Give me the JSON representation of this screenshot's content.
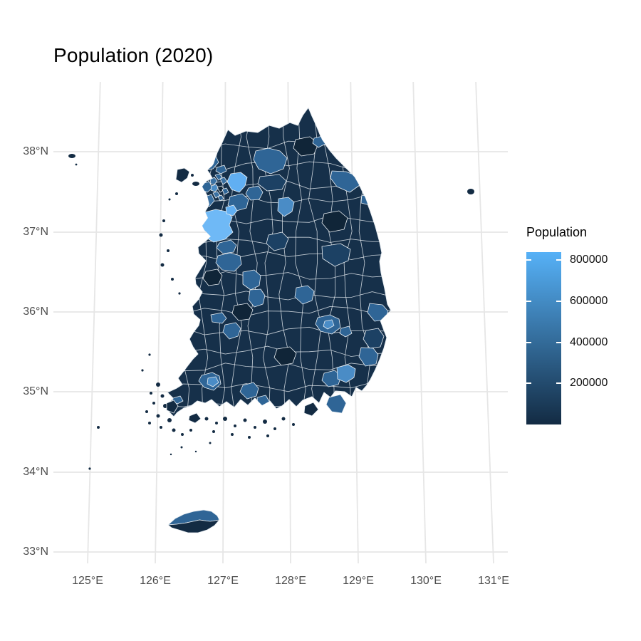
{
  "title": "Population (2020)",
  "legend": {
    "title": "Population",
    "ticks": [
      "800000",
      "600000",
      "400000",
      "200000"
    ]
  },
  "axes": {
    "x_ticks": [
      "125°E",
      "126°E",
      "127°E",
      "128°E",
      "129°E",
      "130°E",
      "131°E"
    ],
    "y_ticks": [
      "38°N",
      "37°N",
      "36°N",
      "35°N",
      "34°N",
      "33°N"
    ]
  },
  "palette": {
    "lo": "#132B43",
    "hi": "#56B1F7",
    "base": "#16304A",
    "dark": "#132B43",
    "dark2": "#102538",
    "dark3": "#1C4164",
    "med": "#2F6596",
    "med2": "#3A71A3",
    "medlight": "#4A8CC6",
    "light": "#61AFF2",
    "lightest": "#6FB9F6",
    "border": "#EBF0F4",
    "grid": "#E6E6E6",
    "axis_text": "#4D4D4D",
    "title_text": "#000000",
    "background": "#FFFFFF"
  },
  "chart_data": {
    "type": "choropleth_map",
    "title": "Population (2020)",
    "subject": "South Korea, municipal-level districts shaded by population",
    "graticule": {
      "lon_ticks_deg_E": [
        125,
        126,
        127,
        128,
        129,
        130,
        131
      ],
      "lat_ticks_deg_N": [
        33,
        34,
        35,
        36,
        37,
        38
      ],
      "grid": "on, light gray, slightly slanted meridians (projected CRS)"
    },
    "color_scale": {
      "type": "continuous_gradient",
      "legend_title": "Population",
      "low_color": "#132B43",
      "high_color": "#56B1F7",
      "legend_ticks": [
        200000,
        400000,
        600000,
        800000
      ],
      "approx_domain": [
        0,
        840000
      ],
      "legend_position": "right"
    },
    "value_encoding_read_from_colors": {
      "dark_navy_majority_of_districts": "below ~200000",
      "medium_blue_regional_city_patches": "~350000-550000",
      "light_blue_cells": "~700000-850000"
    },
    "notable_regions_by_location": [
      {
        "location": "northwest metropolitan cluster (~126.8-127.3E, 37.2-37.9N), many tiny districts",
        "values": "mixed ~250000-700000"
      },
      {
        "location": "brightest block on west-central coast south of the capital cluster (~126.8E, 37.2N)",
        "values": "~800000+"
      },
      {
        "location": "light cell northeast of the capital cluster (~127.2E, 37.6N)",
        "values": "~700000"
      },
      {
        "location": "medium patches: northeast coast (~128.9E 37.7N), central (~127.4E 36.4-36.8N), east-central (~128.3E 36.2N)",
        "values": "~350000-500000"
      },
      {
        "location": "southeast cities cluster (~128.6-129.3E, 35.1-36.1N)",
        "values": "~300000-550000"
      },
      {
        "location": "southwest city cluster (~126.9E 35.15N) with lighter core",
        "values": "~300000-450000"
      },
      {
        "location": "Jeju island: north half medium blue, south half dark navy",
        "values": "north ~480000, south below ~200000"
      },
      {
        "location": "small island far east (~130.8E 37.5N) and scattered west/south coast islands",
        "values": "below ~200000"
      }
    ]
  }
}
